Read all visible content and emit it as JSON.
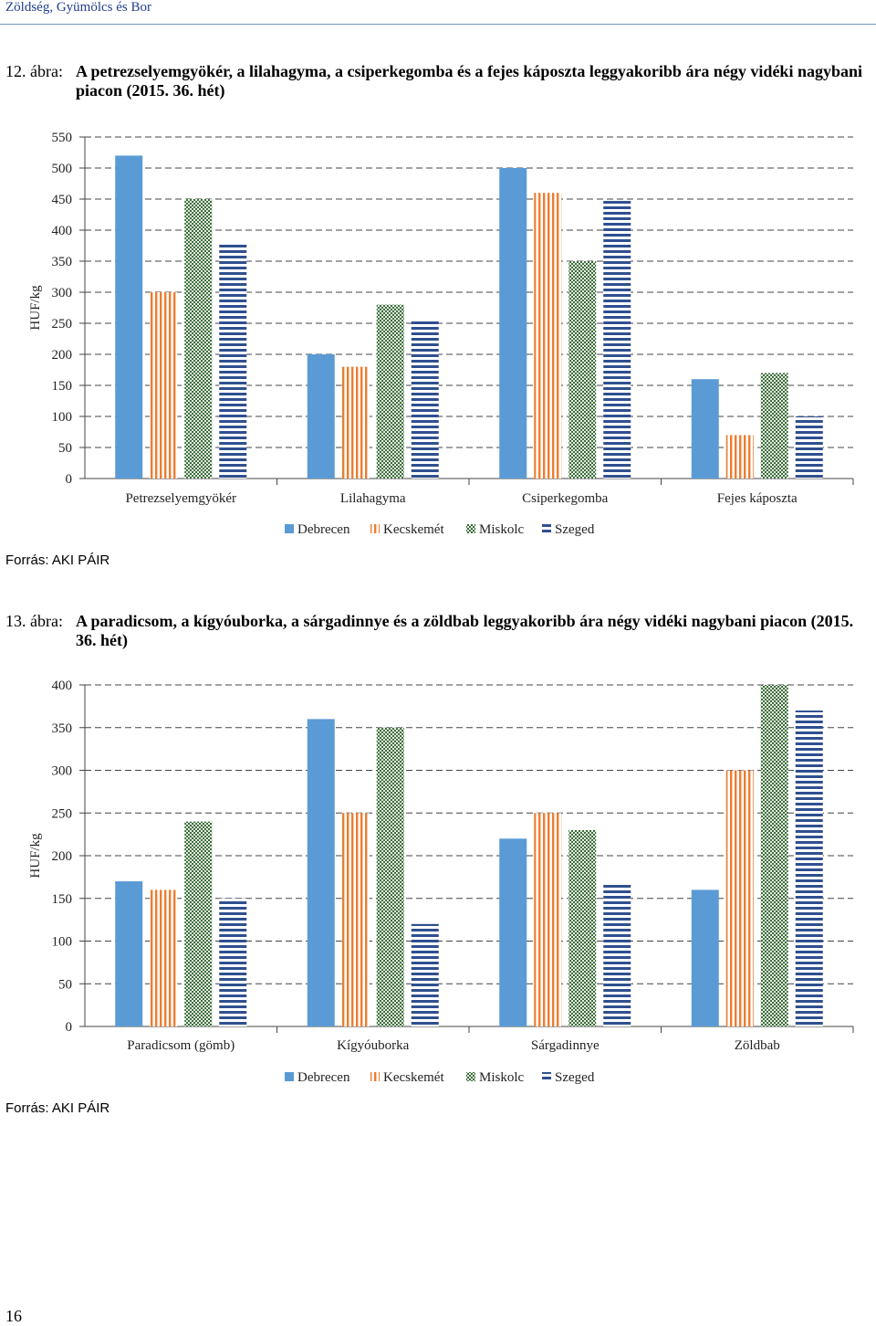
{
  "header": {
    "title": "Zöldség, Gyümölcs és Bor"
  },
  "page_number": "16",
  "figures": [
    {
      "caption_number": "12. ábra:",
      "caption_text": "A petrezselyemgyökér, a lilahagyma, a csiperkegomba és a fejes káposzta leggyakoribb ára négy vidéki nagybani piacon (2015. 36. hét)",
      "source": "Forrás: AKI PÁIR"
    },
    {
      "caption_number": "13. ábra:",
      "caption_text": "A paradicsom, a kígyóuborka, a sárgadinnye és a zöldbab leggyakoribb ára négy vidéki nagybani piacon (2015. 36. hét)",
      "source": "Forrás: AKI PÁIR"
    }
  ],
  "colors": {
    "Debrecen": "#5b9bd5",
    "Kecskemét": "#ed7d31",
    "Miskolc": "#3a6e3a",
    "Szeged": "#2f4f8f"
  },
  "chart_data": [
    {
      "type": "bar",
      "ylabel": "HUF/kg",
      "xlabel": "",
      "ylim": [
        0,
        550
      ],
      "ytick_step": 50,
      "grid": true,
      "legend": "bottom",
      "categories": [
        "Petrezselyemgyökér",
        "Lilahagyma",
        "Csiperkegomba",
        "Fejes káposzta"
      ],
      "series": [
        {
          "name": "Debrecen",
          "values": [
            520,
            200,
            500,
            160
          ]
        },
        {
          "name": "Kecskemét",
          "values": [
            300,
            180,
            460,
            70
          ]
        },
        {
          "name": "Miskolc",
          "values": [
            450,
            280,
            350,
            170
          ]
        },
        {
          "name": "Szeged",
          "values": [
            380,
            257,
            447,
            100
          ]
        }
      ]
    },
    {
      "type": "bar",
      "ylabel": "HUF/kg",
      "xlabel": "",
      "ylim": [
        0,
        400
      ],
      "ytick_step": 50,
      "grid": true,
      "legend": "bottom",
      "categories": [
        "Paradicsom (gömb)",
        "Kígyóuborka",
        "Sárgadinnye",
        "Zöldbab"
      ],
      "series": [
        {
          "name": "Debrecen",
          "values": [
            170,
            360,
            220,
            160
          ]
        },
        {
          "name": "Kecskemét",
          "values": [
            160,
            250,
            250,
            300
          ]
        },
        {
          "name": "Miskolc",
          "values": [
            240,
            350,
            230,
            400
          ]
        },
        {
          "name": "Szeged",
          "values": [
            150,
            120,
            168,
            370
          ]
        }
      ]
    }
  ]
}
